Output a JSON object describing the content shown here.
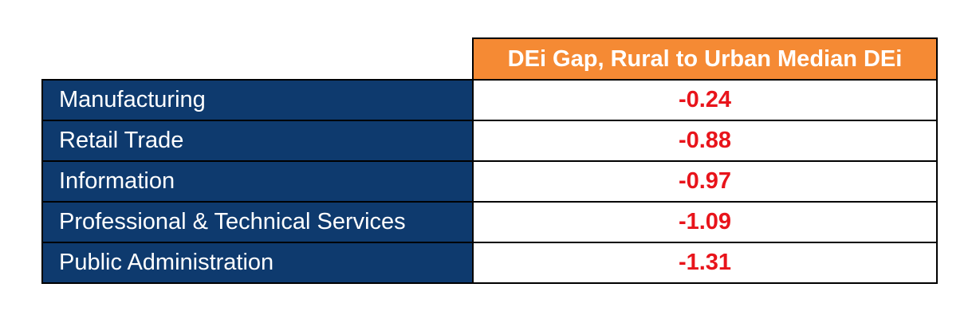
{
  "colors": {
    "header_bg": "#f58a34",
    "label_bg": "#0e3a6e",
    "value_text": "#e8141b",
    "label_text": "#ffffff"
  },
  "chart_data": {
    "type": "table",
    "column_header": "DEi Gap, Rural to Urban Median DEi",
    "rows": [
      {
        "label": "Manufacturing",
        "value": "-0.24"
      },
      {
        "label": "Retail Trade",
        "value": "-0.88"
      },
      {
        "label": "Information",
        "value": "-0.97"
      },
      {
        "label": "Professional & Technical Services",
        "value": "-1.09"
      },
      {
        "label": "Public Administration",
        "value": "-1.31"
      }
    ]
  }
}
